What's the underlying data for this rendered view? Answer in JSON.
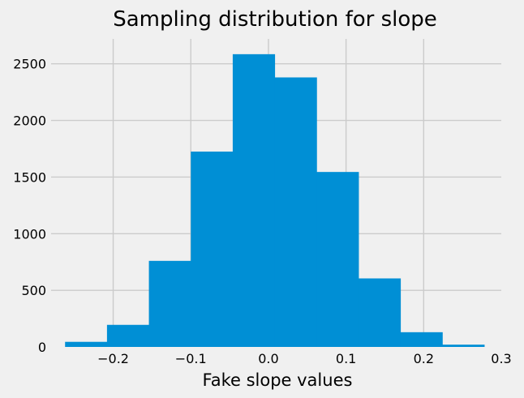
{
  "chart_data": {
    "type": "bar",
    "title": "Sampling distribution for slope",
    "xlabel": "Fake slope values",
    "ylabel": "",
    "bar_color": "#008fd5",
    "grid_color": "#cbcbcb",
    "background": "#f0f0f0",
    "grid": true,
    "xlim": [
      -0.28,
      0.3
    ],
    "ylim": [
      0,
      2720
    ],
    "xticks": [
      -0.2,
      -0.1,
      0.0,
      0.1,
      0.2,
      0.3
    ],
    "xtick_labels": [
      "−0.2",
      "−0.1",
      "0.0",
      "0.1",
      "0.2",
      "0.3"
    ],
    "yticks": [
      0,
      500,
      1000,
      1500,
      2000,
      2500
    ],
    "ytick_labels": [
      "0",
      "500",
      "1000",
      "1500",
      "2000",
      "2500"
    ],
    "bins": [
      {
        "x0": -0.262,
        "x1": -0.208,
        "count": 45
      },
      {
        "x0": -0.208,
        "x1": -0.154,
        "count": 195
      },
      {
        "x0": -0.154,
        "x1": -0.1,
        "count": 760
      },
      {
        "x0": -0.1,
        "x1": -0.046,
        "count": 1725
      },
      {
        "x0": -0.046,
        "x1": 0.008,
        "count": 2585
      },
      {
        "x0": 0.008,
        "x1": 0.062,
        "count": 2380
      },
      {
        "x0": 0.062,
        "x1": 0.116,
        "count": 1545
      },
      {
        "x0": 0.116,
        "x1": 0.17,
        "count": 605
      },
      {
        "x0": 0.17,
        "x1": 0.224,
        "count": 130
      },
      {
        "x0": 0.224,
        "x1": 0.278,
        "count": 20
      }
    ]
  }
}
